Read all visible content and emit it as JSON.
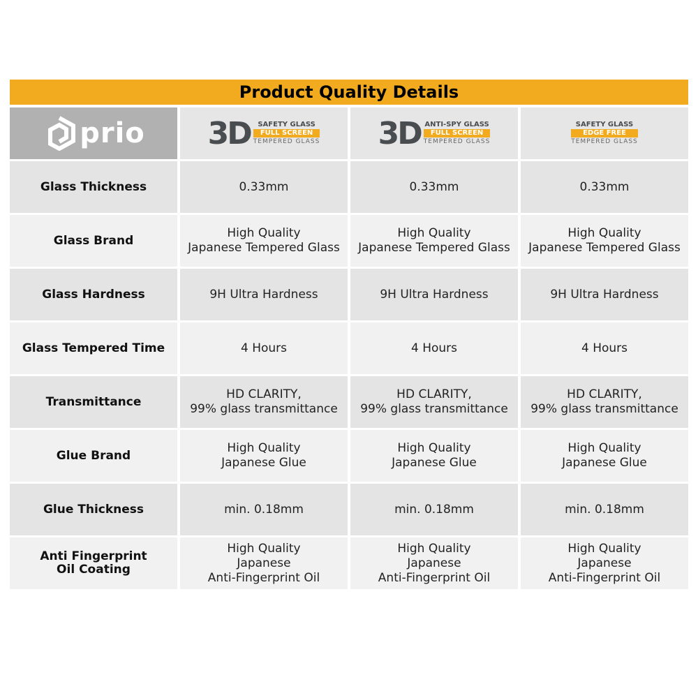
{
  "title": "Product Quality Details",
  "logo": {
    "text": "prio"
  },
  "products": [
    {
      "prefix": "3D",
      "line1": "SAFETY GLASS",
      "band": "FULL SCREEN",
      "line3": "TEMPERED GLASS"
    },
    {
      "prefix": "3D",
      "line1": "ANTI-SPY GLASS",
      "band": "FULL SCREEN",
      "line3": "TEMPERED GLASS"
    },
    {
      "prefix": "",
      "line1": "SAFETY GLASS",
      "band": "EDGE FREE",
      "line3": "TEMPERED GLASS"
    }
  ],
  "rows": [
    {
      "label": "Glass Thickness",
      "values": [
        "0.33mm",
        "0.33mm",
        "0.33mm"
      ]
    },
    {
      "label": "Glass Brand",
      "values": [
        "High Quality\nJapanese Tempered Glass",
        "High Quality\nJapanese Tempered Glass",
        "High Quality\nJapanese Tempered Glass"
      ]
    },
    {
      "label": "Glass Hardness",
      "values": [
        "9H Ultra Hardness",
        "9H Ultra Hardness",
        "9H Ultra Hardness"
      ]
    },
    {
      "label": "Glass Tempered Time",
      "values": [
        "4 Hours",
        "4 Hours",
        "4 Hours"
      ]
    },
    {
      "label": "Transmittance",
      "values": [
        "HD CLARITY,\n99% glass transmittance",
        "HD CLARITY,\n99% glass transmittance",
        "HD CLARITY,\n99% glass transmittance"
      ]
    },
    {
      "label": "Glue Brand",
      "values": [
        "High Quality\nJapanese Glue",
        "High Quality\nJapanese Glue",
        "High Quality\nJapanese Glue"
      ]
    },
    {
      "label": "Glue Thickness",
      "values": [
        "min. 0.18mm",
        "min. 0.18mm",
        "min. 0.18mm"
      ]
    },
    {
      "label": "Anti Fingerprint\nOil Coating",
      "values": [
        "High Quality\nJapanese\nAnti-Fingerprint Oil",
        "High Quality\nJapanese\nAnti-Fingerprint Oil",
        "High Quality\nJapanese\nAnti-Fingerprint Oil"
      ]
    }
  ],
  "colors": {
    "accent": "#f2ab1e",
    "logo_bg": "#b0b1b0"
  }
}
